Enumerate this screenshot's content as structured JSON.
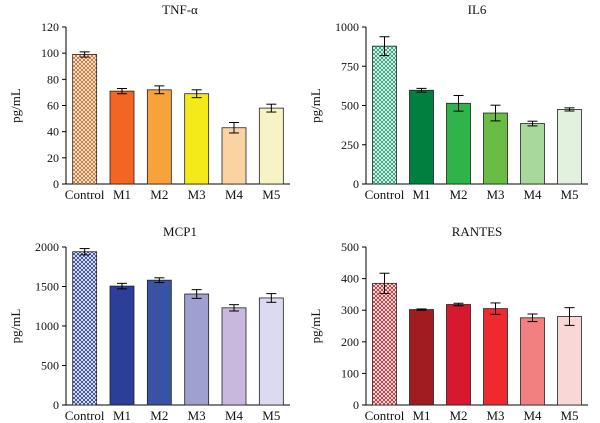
{
  "chart_data": [
    {
      "type": "bar",
      "title": "TNF-α",
      "ylabel": "pg/mL",
      "xlabel": "",
      "ylim": [
        0,
        120
      ],
      "yticks": [
        0,
        20,
        40,
        60,
        80,
        100,
        120
      ],
      "categories": [
        "Control",
        "M1",
        "M2",
        "M3",
        "M4",
        "M5"
      ],
      "values": [
        99,
        71,
        72,
        69,
        43,
        58
      ],
      "errors": [
        2,
        2,
        3,
        3,
        4,
        3
      ],
      "colors": [
        "#e8a07a",
        "#f26522",
        "#f7a23a",
        "#f4ea19",
        "#fbd3a3",
        "#f6f4c4"
      ],
      "control_hatch": "#d2691e"
    },
    {
      "type": "bar",
      "title": "IL6",
      "ylabel": "pg/mL",
      "xlabel": "",
      "ylim": [
        0,
        1000
      ],
      "yticks": [
        0,
        250,
        500,
        750,
        1000
      ],
      "categories": [
        "Control",
        "M1",
        "M2",
        "M3",
        "M4",
        "M5"
      ],
      "values": [
        878,
        597,
        514,
        452,
        385,
        475
      ],
      "errors": [
        60,
        12,
        50,
        50,
        15,
        10
      ],
      "colors": [
        "#8fd0b2",
        "#007f3e",
        "#2fb34a",
        "#69bd45",
        "#a8d89b",
        "#e2f1dd"
      ],
      "control_hatch": "#1f9e74"
    },
    {
      "type": "bar",
      "title": "MCP1",
      "ylabel": "pg/mL",
      "xlabel": "",
      "ylim": [
        0,
        2000
      ],
      "yticks": [
        0,
        500,
        1000,
        1500,
        2000
      ],
      "categories": [
        "Control",
        "M1",
        "M2",
        "M3",
        "M4",
        "M5"
      ],
      "values": [
        1940,
        1505,
        1580,
        1405,
        1230,
        1355
      ],
      "errors": [
        40,
        35,
        30,
        55,
        40,
        55
      ],
      "colors": [
        "#9aa3d0",
        "#2b3f98",
        "#3852a4",
        "#9f9fd0",
        "#c8b8de",
        "#dcdaf0"
      ],
      "control_hatch": "#2b3f98"
    },
    {
      "type": "bar",
      "title": "RANTES",
      "ylabel": "pg/mL",
      "xlabel": "",
      "ylim": [
        0,
        500
      ],
      "yticks": [
        0,
        100,
        200,
        300,
        400,
        500
      ],
      "categories": [
        "Control",
        "M1",
        "M2",
        "M3",
        "M4",
        "M5"
      ],
      "values": [
        385,
        302,
        318,
        305,
        276,
        280
      ],
      "errors": [
        32,
        2,
        4,
        18,
        12,
        28
      ],
      "colors": [
        "#e58a8a",
        "#a01c20",
        "#d7192f",
        "#ee2a2f",
        "#f28080",
        "#f9d7d7"
      ],
      "control_hatch": "#c0272d"
    }
  ]
}
